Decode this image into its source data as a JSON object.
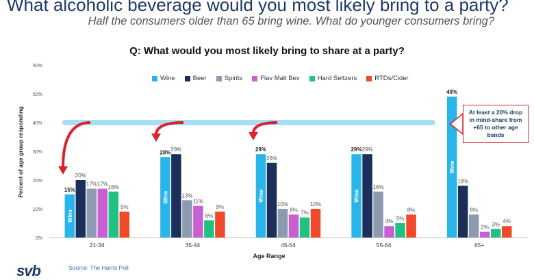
{
  "page": {
    "title": "What alcoholic beverage would you most likely bring to a party?",
    "subtitle": "Half the consumers older than 65 bring wine. What do younger consumers bring?",
    "callout": "At least a 20% drop in mind-share from +65 to other age bands",
    "source": "Source: The Harris Poll",
    "logo": "svb"
  },
  "chart_data": {
    "type": "bar",
    "title": "Q: What would you most likely bring to share at a party?",
    "xlabel": "Age Range",
    "ylabel": "Percent of age group responding",
    "ylim": [
      0,
      60
    ],
    "yticks": [
      "0%",
      "10%",
      "20%",
      "30%",
      "40%",
      "50%",
      "60%"
    ],
    "grid": false,
    "legend_position": "top",
    "categories": [
      "21-34",
      "35-44",
      "45-54",
      "55-64",
      "65+"
    ],
    "series": [
      {
        "name": "Wine",
        "color": "#2ab5ea",
        "values": [
          15,
          28,
          29,
          29,
          49
        ],
        "labels": [
          "15%",
          "28%",
          "29%",
          "29%",
          "49%"
        ]
      },
      {
        "name": "Beer",
        "color": "#1b2f5a",
        "values": [
          20,
          29,
          26,
          29,
          18
        ],
        "labels": [
          "20%",
          "29%",
          "26%",
          "29%",
          "18%"
        ]
      },
      {
        "name": "Spirits",
        "color": "#8c9bb0",
        "values": [
          17,
          13,
          10,
          16,
          8
        ],
        "labels": [
          "17%",
          "13%",
          "10%",
          "16%",
          "8%"
        ]
      },
      {
        "name": "Flav Malt Bev",
        "color": "#c85fd3",
        "values": [
          17,
          11,
          8,
          4,
          2
        ],
        "labels": [
          "17%",
          "11%",
          "8%",
          "4%",
          "2%"
        ]
      },
      {
        "name": "Hard Seltzers",
        "color": "#20c283",
        "values": [
          16,
          6,
          7,
          5,
          3
        ],
        "labels": [
          "16%",
          "6%",
          "7%",
          "5%",
          "3%"
        ]
      },
      {
        "name": "RTDs/Cider",
        "color": "#f04a2a",
        "values": [
          9,
          9,
          10,
          8,
          4
        ],
        "labels": [
          "9%",
          "9%",
          "10%",
          "8%",
          "4%"
        ]
      }
    ],
    "bar_inner_label": "Wine",
    "reference_line": {
      "value": 40,
      "color": "#a7dff2"
    }
  }
}
